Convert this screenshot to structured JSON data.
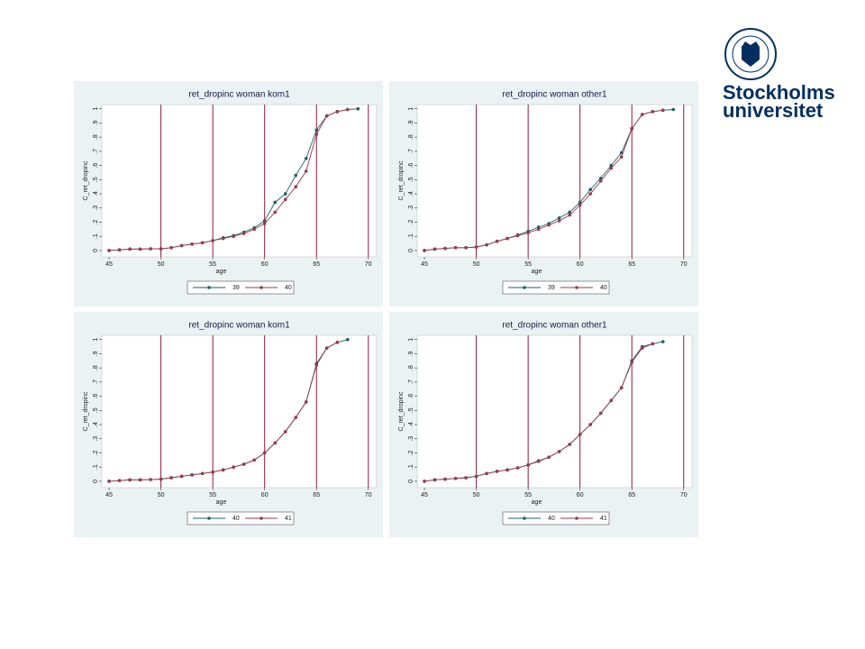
{
  "logo": {
    "line1": "Stockholms",
    "line2": "universitet"
  },
  "chart_data": [
    {
      "type": "line",
      "title": "ret_dropinc woman kom1",
      "x_label": "age",
      "y_label": "C_ret_dropinc",
      "x": [
        45,
        46,
        47,
        48,
        49,
        50,
        51,
        52,
        53,
        54,
        55,
        56,
        57,
        58,
        59,
        60,
        61,
        62,
        63,
        64,
        65,
        66,
        67,
        68,
        69
      ],
      "series": [
        {
          "name": "39",
          "color": "#1f5f6b",
          "values": [
            0,
            0.005,
            0.01,
            0.01,
            0.012,
            0.012,
            0.02,
            0.035,
            0.045,
            0.055,
            0.07,
            0.09,
            0.105,
            0.13,
            0.16,
            0.21,
            0.34,
            0.4,
            0.53,
            0.65,
            0.85,
            0.95,
            0.98,
            0.995,
            1.0
          ]
        },
        {
          "name": "40",
          "color": "#9a3a4a",
          "values": [
            0,
            0.005,
            0.01,
            0.01,
            0.012,
            0.012,
            0.02,
            0.035,
            0.045,
            0.055,
            0.07,
            0.085,
            0.1,
            0.12,
            0.15,
            0.19,
            0.27,
            0.36,
            0.45,
            0.56,
            0.82,
            0.95,
            0.98,
            0.995,
            null
          ]
        }
      ],
      "xlim": [
        44.3,
        70.8
      ],
      "ylim": [
        -0.045,
        1.03
      ],
      "xticks": [
        45,
        50,
        55,
        60,
        65,
        70
      ],
      "yticks": [
        0,
        {
          "value": 0.1,
          "label": ".1"
        },
        {
          "value": 0.2,
          "label": ".2"
        },
        {
          "value": 0.3,
          "label": ".3"
        },
        {
          "value": 0.4,
          "label": ".4"
        },
        {
          "value": 0.5,
          "label": ".5"
        },
        {
          "value": 0.6,
          "label": ".6"
        },
        {
          "value": 0.7,
          "label": ".7"
        },
        {
          "value": 0.8,
          "label": ".8"
        },
        {
          "value": 0.9,
          "label": ".9"
        },
        1
      ],
      "xlines": [
        50,
        55,
        60,
        65,
        70
      ],
      "xline_color": "#8b1a3a"
    },
    {
      "type": "line",
      "title": "ret_dropinc woman other1",
      "x_label": "age",
      "y_label": "C_ret_dropinc",
      "x": [
        45,
        46,
        47,
        48,
        49,
        50,
        51,
        52,
        53,
        54,
        55,
        56,
        57,
        58,
        59,
        60,
        61,
        62,
        63,
        64,
        65,
        66,
        67,
        68,
        69
      ],
      "series": [
        {
          "name": "39",
          "color": "#1f5f6b",
          "values": [
            0,
            0.01,
            0.015,
            0.02,
            0.02,
            0.025,
            0.04,
            0.065,
            0.085,
            0.11,
            0.135,
            0.165,
            0.19,
            0.23,
            0.27,
            0.34,
            0.43,
            0.51,
            0.6,
            0.69,
            0.86,
            0.96,
            0.98,
            0.99,
            0.995
          ]
        },
        {
          "name": "40",
          "color": "#9a3a4a",
          "values": [
            0,
            0.01,
            0.015,
            0.02,
            0.02,
            0.025,
            0.04,
            0.065,
            0.085,
            0.105,
            0.125,
            0.15,
            0.18,
            0.21,
            0.25,
            0.32,
            0.4,
            0.49,
            0.58,
            0.66,
            0.86,
            0.96,
            0.98,
            0.99,
            null
          ]
        }
      ],
      "xlim": [
        44.3,
        70.8
      ],
      "ylim": [
        -0.045,
        1.03
      ],
      "xticks": [
        45,
        50,
        55,
        60,
        65,
        70
      ],
      "yticks": [
        0,
        {
          "value": 0.1,
          "label": ".1"
        },
        {
          "value": 0.2,
          "label": ".2"
        },
        {
          "value": 0.3,
          "label": ".3"
        },
        {
          "value": 0.4,
          "label": ".4"
        },
        {
          "value": 0.5,
          "label": ".5"
        },
        {
          "value": 0.6,
          "label": ".6"
        },
        {
          "value": 0.7,
          "label": ".7"
        },
        {
          "value": 0.8,
          "label": ".8"
        },
        {
          "value": 0.9,
          "label": ".9"
        },
        1
      ],
      "xlines": [
        50,
        55,
        60,
        65,
        70
      ],
      "xline_color": "#8b1a3a"
    },
    {
      "type": "line",
      "title": "ret_dropinc woman kom1",
      "x_label": "age",
      "y_label": "C_ret_dropinc",
      "x": [
        45,
        46,
        47,
        48,
        49,
        50,
        51,
        52,
        53,
        54,
        55,
        56,
        57,
        58,
        59,
        60,
        61,
        62,
        63,
        64,
        65,
        66,
        67,
        68,
        69
      ],
      "series": [
        {
          "name": "40",
          "color": "#1f5f6b",
          "values": [
            0,
            0.005,
            0.01,
            0.01,
            0.012,
            0.015,
            0.025,
            0.035,
            0.045,
            0.055,
            0.065,
            0.08,
            0.1,
            0.12,
            0.15,
            0.2,
            0.27,
            0.35,
            0.45,
            0.56,
            0.83,
            0.94,
            0.98,
            1.0,
            null
          ]
        },
        {
          "name": "41",
          "color": "#9a3a4a",
          "values": [
            0,
            0.005,
            0.01,
            0.01,
            0.012,
            0.015,
            0.025,
            0.035,
            0.045,
            0.055,
            0.065,
            0.08,
            0.1,
            0.12,
            0.15,
            0.2,
            0.27,
            0.35,
            0.45,
            0.56,
            0.82,
            0.94,
            0.98,
            null,
            null
          ]
        }
      ],
      "xlim": [
        44.3,
        70.8
      ],
      "ylim": [
        -0.045,
        1.03
      ],
      "xticks": [
        45,
        50,
        55,
        60,
        65,
        70
      ],
      "yticks": [
        0,
        {
          "value": 0.1,
          "label": ".1"
        },
        {
          "value": 0.2,
          "label": ".2"
        },
        {
          "value": 0.3,
          "label": ".3"
        },
        {
          "value": 0.4,
          "label": ".4"
        },
        {
          "value": 0.5,
          "label": ".5"
        },
        {
          "value": 0.6,
          "label": ".6"
        },
        {
          "value": 0.7,
          "label": ".7"
        },
        {
          "value": 0.8,
          "label": ".8"
        },
        {
          "value": 0.9,
          "label": ".9"
        },
        1
      ],
      "xlines": [
        50,
        55,
        60,
        65,
        70
      ],
      "xline_color": "#8b1a3a"
    },
    {
      "type": "line",
      "title": "ret_dropinc woman other1",
      "x_label": "age",
      "y_label": "C_ret_dropinc",
      "x": [
        45,
        46,
        47,
        48,
        49,
        50,
        51,
        52,
        53,
        54,
        55,
        56,
        57,
        58,
        59,
        60,
        61,
        62,
        63,
        64,
        65,
        66,
        67,
        68,
        69
      ],
      "series": [
        {
          "name": "40",
          "color": "#1f5f6b",
          "values": [
            0,
            0.01,
            0.015,
            0.02,
            0.025,
            0.035,
            0.055,
            0.07,
            0.08,
            0.095,
            0.115,
            0.145,
            0.17,
            0.21,
            0.26,
            0.33,
            0.4,
            0.48,
            0.57,
            0.66,
            0.85,
            0.95,
            0.97,
            0.985,
            null
          ]
        },
        {
          "name": "41",
          "color": "#9a3a4a",
          "values": [
            0,
            0.01,
            0.015,
            0.02,
            0.025,
            0.035,
            0.055,
            0.07,
            0.08,
            0.095,
            0.115,
            0.14,
            0.17,
            0.21,
            0.26,
            0.33,
            0.4,
            0.48,
            0.57,
            0.66,
            0.84,
            0.94,
            0.97,
            null,
            null
          ]
        }
      ],
      "xlim": [
        44.3,
        70.8
      ],
      "ylim": [
        -0.045,
        1.03
      ],
      "xticks": [
        45,
        50,
        55,
        60,
        65,
        70
      ],
      "yticks": [
        0,
        {
          "value": 0.1,
          "label": ".1"
        },
        {
          "value": 0.2,
          "label": ".2"
        },
        {
          "value": 0.3,
          "label": ".3"
        },
        {
          "value": 0.4,
          "label": ".4"
        },
        {
          "value": 0.5,
          "label": ".5"
        },
        {
          "value": 0.6,
          "label": ".6"
        },
        {
          "value": 0.7,
          "label": ".7"
        },
        {
          "value": 0.8,
          "label": ".8"
        },
        {
          "value": 0.9,
          "label": ".9"
        },
        1
      ],
      "xlines": [
        50,
        55,
        60,
        65,
        70
      ],
      "xline_color": "#8b1a3a"
    }
  ]
}
